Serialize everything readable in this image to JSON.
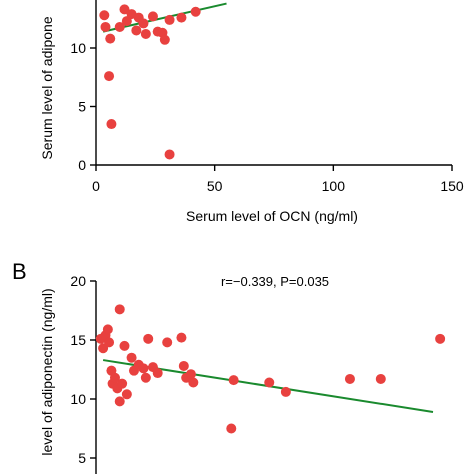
{
  "chart_data": [
    {
      "type": "scatter",
      "panel_label": "",
      "title": "",
      "stats": "",
      "xlabel": "Serum level of OCN (ng/ml)",
      "ylabel": "Serum level of adiponectin (ng/ml)",
      "ylabel_visible": "Serum level of adipone",
      "xlim": [
        0,
        150
      ],
      "ylim": [
        0,
        15
      ],
      "xticks": [
        0,
        50,
        100,
        150
      ],
      "yticks": [
        0,
        5,
        10
      ],
      "point_color": "#e8413f",
      "line_color": "#1a8a2e",
      "fit_line": {
        "x": [
          3,
          55
        ],
        "y": [
          11.4,
          13.8
        ]
      },
      "points": [
        {
          "x": 3.5,
          "y": 12.8
        },
        {
          "x": 4,
          "y": 11.8
        },
        {
          "x": 6,
          "y": 10.8
        },
        {
          "x": 5.5,
          "y": 7.6
        },
        {
          "x": 6.5,
          "y": 3.5
        },
        {
          "x": 10,
          "y": 11.8
        },
        {
          "x": 12,
          "y": 13.3
        },
        {
          "x": 13,
          "y": 12.3
        },
        {
          "x": 15,
          "y": 12.9
        },
        {
          "x": 17,
          "y": 11.5
        },
        {
          "x": 18,
          "y": 12.6
        },
        {
          "x": 20,
          "y": 12.1
        },
        {
          "x": 21,
          "y": 11.2
        },
        {
          "x": 24,
          "y": 12.7
        },
        {
          "x": 26,
          "y": 11.4
        },
        {
          "x": 28,
          "y": 11.3
        },
        {
          "x": 29,
          "y": 10.7
        },
        {
          "x": 31,
          "y": 12.4
        },
        {
          "x": 36,
          "y": 12.6
        },
        {
          "x": 42,
          "y": 13.1
        },
        {
          "x": 31,
          "y": 0.9
        }
      ]
    },
    {
      "type": "scatter",
      "panel_label": "B",
      "title": "",
      "stats": "r=−0.339, P=0.035",
      "xlabel": "",
      "ylabel": "Serum level of adiponectin (ng/ml)",
      "ylabel_visible": "level of adiponectin (ng/ml)",
      "xlim": [
        0,
        150
      ],
      "ylim": [
        0,
        20
      ],
      "xticks": [],
      "yticks": [
        5,
        10,
        15,
        20
      ],
      "point_color": "#e8413f",
      "line_color": "#1a8a2e",
      "fit_line": {
        "x": [
          3,
          142
        ],
        "y": [
          13.3,
          8.9
        ]
      },
      "points": [
        {
          "x": 2,
          "y": 15.1
        },
        {
          "x": 3,
          "y": 14.3
        },
        {
          "x": 4,
          "y": 15.4
        },
        {
          "x": 5,
          "y": 15.9
        },
        {
          "x": 5.5,
          "y": 14.8
        },
        {
          "x": 6.5,
          "y": 12.4
        },
        {
          "x": 7,
          "y": 11.3
        },
        {
          "x": 8,
          "y": 11.8
        },
        {
          "x": 9,
          "y": 10.9
        },
        {
          "x": 10,
          "y": 9.8
        },
        {
          "x": 10,
          "y": 17.6
        },
        {
          "x": 11,
          "y": 11.3
        },
        {
          "x": 12,
          "y": 14.5
        },
        {
          "x": 13,
          "y": 10.4
        },
        {
          "x": 15,
          "y": 13.5
        },
        {
          "x": 16,
          "y": 12.4
        },
        {
          "x": 18,
          "y": 12.9
        },
        {
          "x": 20,
          "y": 12.6
        },
        {
          "x": 21,
          "y": 11.8
        },
        {
          "x": 22,
          "y": 15.1
        },
        {
          "x": 24,
          "y": 12.7
        },
        {
          "x": 26,
          "y": 12.2
        },
        {
          "x": 30,
          "y": 14.8
        },
        {
          "x": 36,
          "y": 15.2
        },
        {
          "x": 37,
          "y": 12.8
        },
        {
          "x": 38,
          "y": 11.8
        },
        {
          "x": 40,
          "y": 12.1
        },
        {
          "x": 41,
          "y": 11.4
        },
        {
          "x": 57,
          "y": 7.5
        },
        {
          "x": 58,
          "y": 11.6
        },
        {
          "x": 73,
          "y": 11.4
        },
        {
          "x": 80,
          "y": 10.6
        },
        {
          "x": 107,
          "y": 11.7
        },
        {
          "x": 120,
          "y": 11.7
        },
        {
          "x": 145,
          "y": 15.1
        }
      ]
    }
  ]
}
